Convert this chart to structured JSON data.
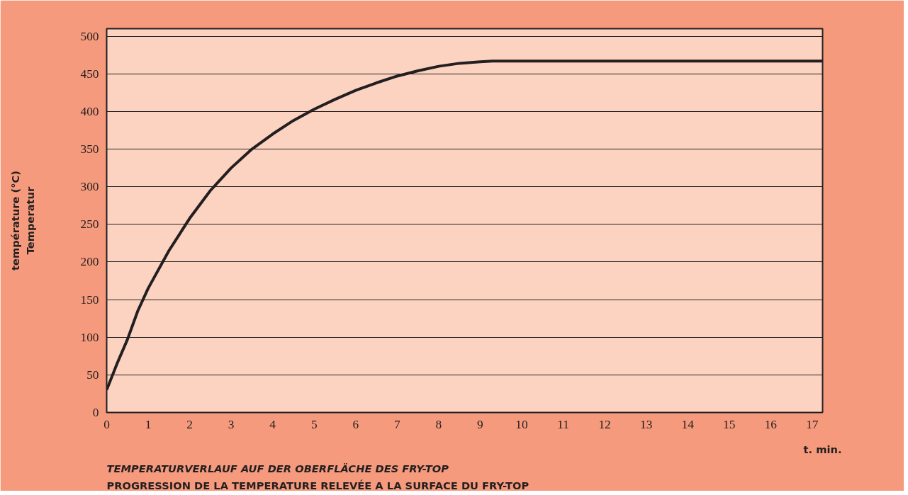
{
  "chart_data": {
    "type": "line",
    "title": "PROGRESSION DE LA TEMPERATURE  RELEVÉE  A LA SURFACE DU FRY-TOP",
    "subtitle": "TEMPERATURVERLAUF AUF DER OBERFLÄCHE DES FRY-TOP",
    "xlabel": "t. min.",
    "ylabel": "température (°C)\nTemperatur",
    "x": [
      0,
      0.25,
      0.5,
      0.75,
      1,
      1.5,
      2,
      2.5,
      3,
      3.5,
      4,
      4.5,
      5,
      5.5,
      6,
      6.5,
      7,
      7.5,
      8,
      8.5,
      9,
      9.3,
      10,
      11,
      12,
      13,
      14,
      15,
      16,
      17,
      17.25
    ],
    "series": [
      {
        "color": "#231f20",
        "values": [
          30,
          65,
          97,
          135,
          165,
          215,
          258,
          295,
          325,
          350,
          370,
          388,
          403,
          416,
          428,
          438,
          447,
          454,
          460,
          464,
          466,
          467,
          467,
          467,
          467,
          467,
          467,
          467,
          467,
          467,
          467
        ]
      }
    ],
    "xlim": [
      0,
      17.25
    ],
    "xticks": [
      0,
      1,
      2,
      3,
      4,
      5,
      6,
      7,
      8,
      9,
      10,
      11,
      12,
      13,
      14,
      15,
      16,
      17
    ],
    "ylim": [
      0,
      510
    ],
    "yticks": [
      0,
      50,
      100,
      150,
      200,
      250,
      300,
      350,
      400,
      450,
      500
    ],
    "grid": "y",
    "marker": "none",
    "line_style": "solid"
  }
}
